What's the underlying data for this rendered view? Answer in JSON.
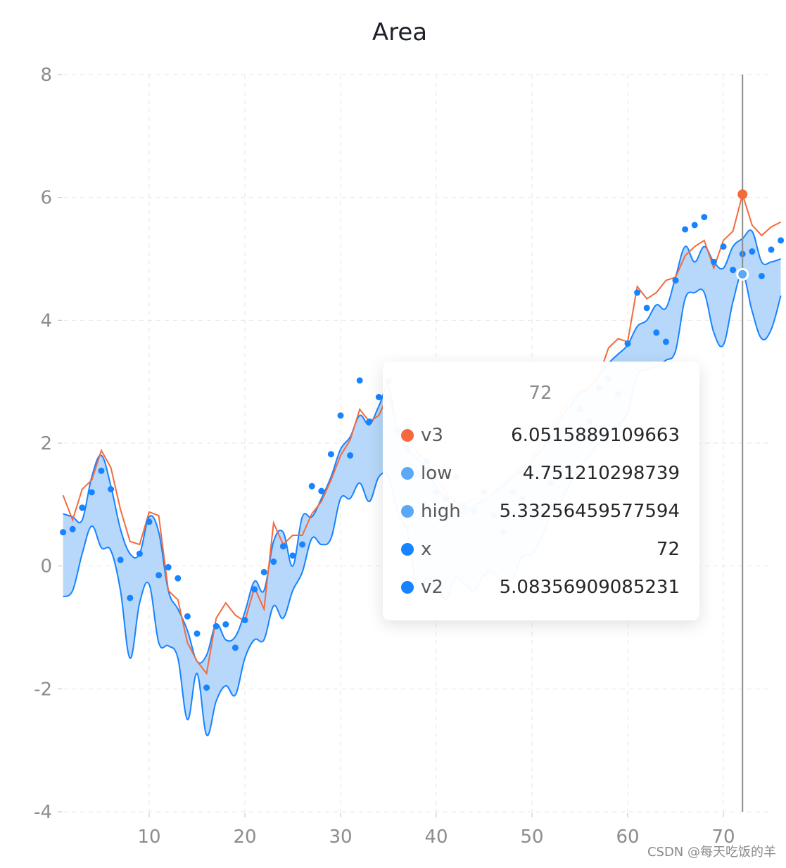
{
  "chart_data": {
    "type": "area",
    "title": "Area",
    "xlim": [
      1,
      76
    ],
    "ylim": [
      -4,
      8
    ],
    "xticks": [
      10,
      20,
      30,
      40,
      50,
      60,
      70
    ],
    "yticks": [
      -4,
      -2,
      0,
      2,
      4,
      6,
      8
    ],
    "grid": true,
    "series": [
      {
        "name": "v3",
        "type": "line",
        "color": "#f46a3d",
        "x": [
          1,
          2,
          3,
          4,
          5,
          6,
          7,
          8,
          9,
          10,
          11,
          12,
          13,
          14,
          15,
          16,
          17,
          18,
          19,
          20,
          21,
          22,
          23,
          24,
          25,
          26,
          27,
          28,
          29,
          30,
          31,
          32,
          33,
          34,
          35,
          36,
          37,
          38,
          39,
          40,
          41,
          42,
          43,
          44,
          45,
          46,
          47,
          48,
          49,
          50,
          51,
          52,
          53,
          54,
          55,
          56,
          57,
          58,
          59,
          60,
          61,
          62,
          63,
          64,
          65,
          66,
          67,
          68,
          69,
          70,
          71,
          72,
          73,
          74,
          75,
          76
        ],
        "values": [
          1.15,
          0.75,
          1.25,
          1.4,
          1.88,
          1.6,
          0.92,
          0.4,
          0.35,
          0.88,
          0.82,
          -0.4,
          -0.55,
          -1.25,
          -1.55,
          -1.75,
          -0.85,
          -0.6,
          -0.8,
          -0.9,
          -0.35,
          -0.7,
          0.7,
          0.35,
          0.5,
          0.5,
          0.85,
          1.05,
          1.4,
          1.8,
          2.05,
          2.55,
          2.35,
          2.45,
          2.8,
          2.2,
          2.05,
          1.85,
          1.7,
          1.45,
          1.2,
          1.05,
          1.0,
          1.1,
          1.05,
          1.2,
          1.35,
          1.5,
          1.6,
          1.75,
          2.0,
          2.2,
          2.5,
          2.7,
          2.85,
          2.9,
          3.1,
          3.55,
          3.7,
          3.65,
          4.55,
          4.35,
          4.45,
          4.65,
          4.7,
          5.05,
          5.2,
          5.3,
          4.85,
          5.3,
          5.45,
          6.05,
          5.55,
          5.38,
          5.52,
          5.6
        ]
      },
      {
        "name": "low",
        "type": "area-low",
        "color": "#5ba8f5",
        "x": [
          1,
          2,
          3,
          4,
          5,
          6,
          7,
          8,
          9,
          10,
          11,
          12,
          13,
          14,
          15,
          16,
          17,
          18,
          19,
          20,
          21,
          22,
          23,
          24,
          25,
          26,
          27,
          28,
          29,
          30,
          31,
          32,
          33,
          34,
          35,
          36,
          37,
          38,
          39,
          40,
          41,
          42,
          43,
          44,
          45,
          46,
          47,
          48,
          49,
          50,
          51,
          52,
          53,
          54,
          55,
          56,
          57,
          58,
          59,
          60,
          61,
          62,
          63,
          64,
          65,
          66,
          67,
          68,
          69,
          70,
          71,
          72,
          73,
          74,
          75,
          76
        ],
        "values": [
          -0.5,
          -0.4,
          0.2,
          0.65,
          0.3,
          0.25,
          -0.4,
          -1.5,
          -0.6,
          -0.3,
          -1.25,
          -1.3,
          -1.5,
          -2.5,
          -1.75,
          -2.75,
          -2.2,
          -1.95,
          -2.1,
          -1.5,
          -1.2,
          -1.2,
          -0.65,
          -0.85,
          -0.4,
          -0.1,
          0.45,
          0.35,
          0.45,
          1.1,
          1.1,
          1.35,
          1.05,
          1.45,
          1.45,
          0.85,
          0.55,
          -0.35,
          -0.2,
          -0.3,
          -0.55,
          -0.2,
          -0.3,
          -0.4,
          -0.15,
          -0.1,
          -0.3,
          -0.2,
          0.15,
          0.2,
          0.45,
          0.85,
          1.05,
          1.35,
          1.6,
          1.8,
          2.0,
          2.15,
          2.3,
          2.5,
          3.1,
          3.2,
          3.25,
          3.35,
          3.5,
          4.35,
          4.45,
          4.45,
          3.8,
          3.6,
          4.3,
          4.75,
          4.15,
          3.7,
          3.85,
          4.4
        ]
      },
      {
        "name": "high",
        "type": "area-high",
        "color": "#5ba8f5",
        "x": [
          1,
          2,
          3,
          4,
          5,
          6,
          7,
          8,
          9,
          10,
          11,
          12,
          13,
          14,
          15,
          16,
          17,
          18,
          19,
          20,
          21,
          22,
          23,
          24,
          25,
          26,
          27,
          28,
          29,
          30,
          31,
          32,
          33,
          34,
          35,
          36,
          37,
          38,
          39,
          40,
          41,
          42,
          43,
          44,
          45,
          46,
          47,
          48,
          49,
          50,
          51,
          52,
          53,
          54,
          55,
          56,
          57,
          58,
          59,
          60,
          61,
          62,
          63,
          64,
          65,
          66,
          67,
          68,
          69,
          70,
          71,
          72,
          73,
          74,
          75,
          76
        ],
        "values": [
          0.85,
          0.8,
          0.75,
          1.45,
          1.8,
          1.3,
          0.6,
          0.2,
          0.2,
          0.8,
          0.55,
          -0.4,
          -0.7,
          -1.05,
          -1.55,
          -1.45,
          -0.95,
          -1.2,
          -1.15,
          -0.75,
          -0.25,
          -0.4,
          0.4,
          0.55,
          0.0,
          0.8,
          0.8,
          1.1,
          1.45,
          1.9,
          2.1,
          2.45,
          2.3,
          2.6,
          2.9,
          2.2,
          1.9,
          1.75,
          1.6,
          1.3,
          1.1,
          0.95,
          0.85,
          1.0,
          1.05,
          1.2,
          1.3,
          1.45,
          1.55,
          1.7,
          1.9,
          2.1,
          2.4,
          2.6,
          2.8,
          2.9,
          3.1,
          3.3,
          3.45,
          3.6,
          3.9,
          4.0,
          4.25,
          4.2,
          4.7,
          5.2,
          4.95,
          5.2,
          4.95,
          4.85,
          5.2,
          5.33,
          5.45,
          4.95,
          4.95,
          5.0
        ]
      },
      {
        "name": "x",
        "type": "hidden",
        "color": "#1783ff",
        "values": []
      },
      {
        "name": "v2",
        "type": "scatter",
        "color": "#1783ff",
        "x": [
          1,
          2,
          3,
          4,
          5,
          6,
          7,
          8,
          9,
          10,
          11,
          12,
          13,
          14,
          15,
          16,
          17,
          18,
          19,
          20,
          21,
          22,
          23,
          24,
          25,
          26,
          27,
          28,
          29,
          30,
          31,
          32,
          33,
          34,
          35,
          36,
          37,
          38,
          39,
          40,
          41,
          42,
          43,
          44,
          45,
          46,
          47,
          48,
          49,
          50,
          51,
          52,
          53,
          54,
          55,
          56,
          57,
          58,
          59,
          60,
          61,
          62,
          63,
          64,
          65,
          66,
          67,
          68,
          69,
          70,
          71,
          72,
          73,
          74,
          75,
          76
        ],
        "values": [
          0.55,
          0.6,
          0.95,
          1.2,
          1.55,
          1.25,
          0.1,
          -0.52,
          0.2,
          0.72,
          -0.15,
          -0.02,
          -0.2,
          -0.82,
          -1.1,
          -1.98,
          -0.98,
          -0.95,
          -1.33,
          -0.88,
          -0.38,
          -0.1,
          0.07,
          0.32,
          0.17,
          0.35,
          1.3,
          1.22,
          1.82,
          2.45,
          1.8,
          3.02,
          2.35,
          2.75,
          3.0,
          2.2,
          1.9,
          1.5,
          1.7,
          1.2,
          1.1,
          1.45,
          0.95,
          0.9,
          1.2,
          0.82,
          0.55,
          1.2,
          1.1,
          0.9,
          0.95,
          1.35,
          1.55,
          2.1,
          2.55,
          2.35,
          2.9,
          3.05,
          2.8,
          3.62,
          4.45,
          4.2,
          3.8,
          3.65,
          4.65,
          5.48,
          5.55,
          5.68,
          4.95,
          5.2,
          4.82,
          5.08,
          5.12,
          4.72,
          5.15,
          5.3
        ]
      }
    ],
    "tooltip": {
      "title": "72",
      "rows": [
        {
          "name": "v3",
          "value": "6.0515889109663",
          "color": "#f46a3d"
        },
        {
          "name": "low",
          "value": "4.751210298739",
          "color": "#5ba8f5"
        },
        {
          "name": "high",
          "value": "5.33256459577594",
          "color": "#5ba8f5"
        },
        {
          "name": "x",
          "value": "72",
          "color": "#1783ff"
        },
        {
          "name": "v2",
          "value": "5.08356909085231",
          "color": "#1783ff"
        }
      ],
      "crosshair_x": 72
    }
  },
  "watermark": "CSDN @每天吃饭的羊"
}
